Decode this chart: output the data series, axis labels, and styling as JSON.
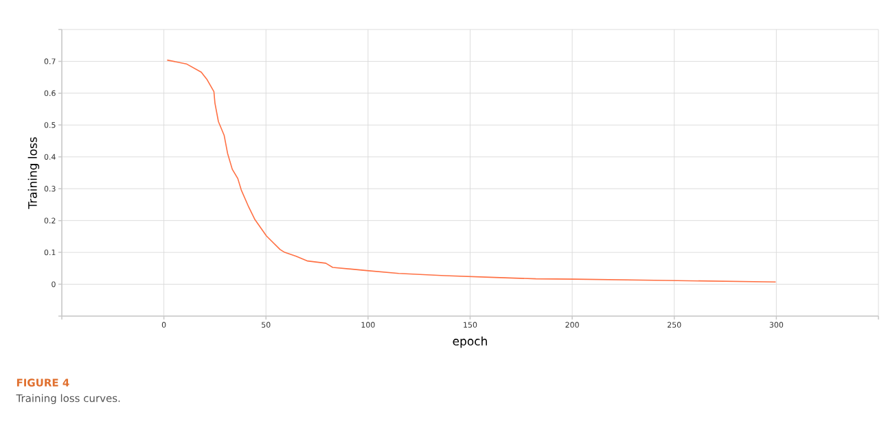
{
  "chart_data": {
    "type": "line",
    "xlabel": "epoch",
    "ylabel": "Training loss",
    "annotations": [
      "FIGURE 4",
      "Training loss curves."
    ],
    "x": [
      1.6,
      11,
      18.3,
      21,
      24.5,
      25,
      26.7,
      29.5,
      31.2,
      33.5,
      36.2,
      37.9,
      41.3,
      44.6,
      50.2,
      56.9,
      59.2,
      64.8,
      70.4,
      79.3,
      82.7,
      99.4,
      115,
      137.5,
      159.8,
      182.2,
      201,
      246,
      299.7
    ],
    "series": [
      {
        "color": "#ff7043",
        "values": [
          0.704,
          0.692,
          0.666,
          0.644,
          0.605,
          0.569,
          0.511,
          0.468,
          0.411,
          0.361,
          0.332,
          0.296,
          0.246,
          0.203,
          0.152,
          0.109,
          0.1,
          0.088,
          0.073,
          0.066,
          0.053,
          0.043,
          0.034,
          0.027,
          0.022,
          0.017,
          0.016,
          0.012,
          0.007
        ]
      }
    ],
    "xlim": [
      -50,
      350
    ],
    "xticks": [
      {
        "value": -50,
        "label": null
      },
      0,
      50,
      100,
      150,
      200,
      250,
      300,
      {
        "value": 350,
        "label": null
      }
    ],
    "ylim": [
      -0.1,
      0.8
    ],
    "yticks": [
      {
        "value": -0.1,
        "label": null
      },
      0,
      0.1,
      0.2,
      0.3,
      0.4,
      0.5,
      0.6,
      0.7,
      {
        "value": 0.8,
        "label": null
      }
    ],
    "grid": true,
    "marker": "none",
    "line_style": "solid"
  }
}
